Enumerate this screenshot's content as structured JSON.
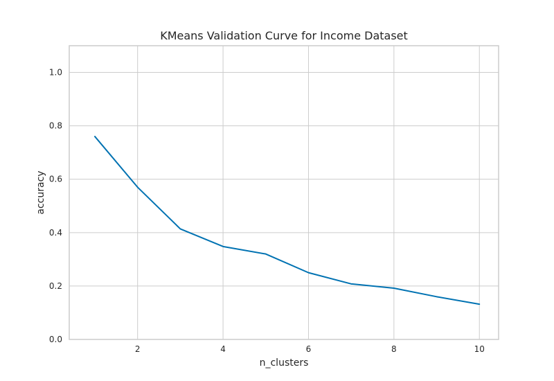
{
  "chart_data": {
    "type": "line",
    "title": "KMeans Validation Curve for Income Dataset",
    "xlabel": "n_clusters",
    "ylabel": "accuracy",
    "x": [
      1,
      2,
      3,
      4,
      5,
      6,
      7,
      8,
      9,
      10
    ],
    "series": [
      {
        "values": [
          0.76,
          0.57,
          0.414,
          0.348,
          0.32,
          0.25,
          0.208,
          0.192,
          0.16,
          0.132
        ]
      }
    ],
    "xlim": [
      0.4,
      10.45
    ],
    "ylim": [
      0.0,
      1.1
    ],
    "xticks": [
      2,
      4,
      6,
      8,
      10
    ],
    "xtick_labels": [
      "2",
      "4",
      "6",
      "8",
      "10"
    ],
    "yticks": [
      0.0,
      0.2,
      0.4,
      0.6,
      0.8,
      1.0
    ],
    "ytick_labels": [
      "0.0",
      "0.2",
      "0.4",
      "0.6",
      "0.8",
      "1.0"
    ],
    "grid": true,
    "colors": {
      "line": "#0072b2",
      "grid": "#cccccc",
      "background": "#ffffff"
    }
  }
}
